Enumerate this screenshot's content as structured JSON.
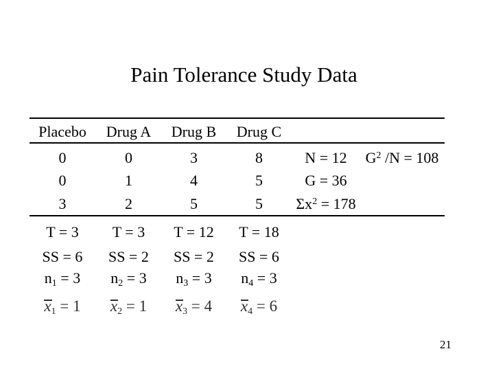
{
  "slide": {
    "title": "Pain Tolerance Study Data",
    "page_number": "21"
  },
  "table": {
    "columns": [
      "Placebo",
      "Drug A",
      "Drug B",
      "Drug C"
    ],
    "data_rows": [
      {
        "values": [
          "0",
          "0",
          "3",
          "8"
        ]
      },
      {
        "values": [
          "0",
          "1",
          "4",
          "5"
        ]
      },
      {
        "values": [
          "3",
          "2",
          "5",
          "5"
        ]
      }
    ],
    "summary": {
      "n_total": "N = 12",
      "g2_over_n": {
        "base": "G",
        "sup": "2",
        "rest": " /N = 108"
      },
      "grand_total": "G = 36",
      "sum_x_squared": {
        "base": "Σx",
        "sup": "2",
        "rest": " = 178"
      }
    },
    "treatment_totals": [
      "T = 3",
      "T = 3",
      "T = 12",
      "T = 18"
    ],
    "sum_of_squares": [
      "SS = 6",
      "SS = 2",
      "SS = 2",
      "SS = 6"
    ],
    "sample_sizes": [
      {
        "base": "n",
        "sub": "1",
        "rest": " = 3"
      },
      {
        "base": "n",
        "sub": "2",
        "rest": " = 3"
      },
      {
        "base": "n",
        "sub": "3",
        "rest": " = 3"
      },
      {
        "base": "n",
        "sub": "4",
        "rest": " = 3"
      }
    ],
    "means": [
      {
        "base": "x",
        "sub": "1",
        "rest": " = 1"
      },
      {
        "base": "x",
        "sub": "2",
        "rest": " = 1"
      },
      {
        "base": "x",
        "sub": "3",
        "rest": " = 4"
      },
      {
        "base": "x",
        "sub": "4",
        "rest": " = 6"
      }
    ]
  },
  "colors": {
    "background": "#ffffff",
    "text": "#000000",
    "equation_text": "#2e2e2e"
  }
}
